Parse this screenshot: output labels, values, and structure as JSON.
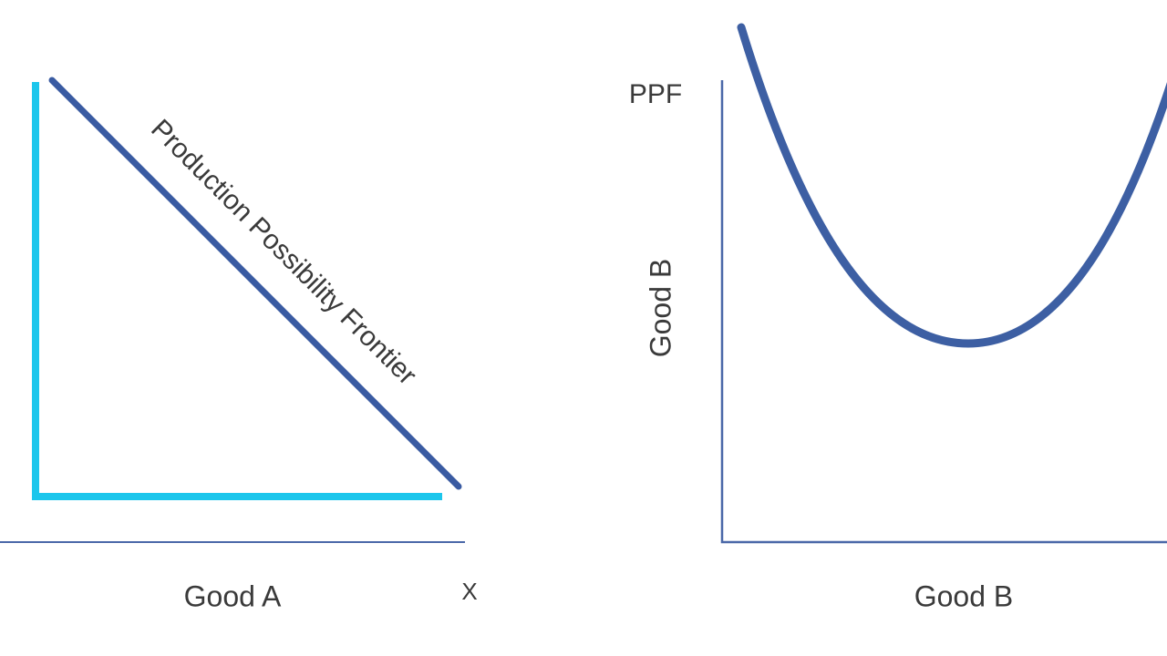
{
  "left_panel": {
    "curve_label": "Production Possibility Frontier",
    "x_axis_label": "Good A",
    "corner_label": "X"
  },
  "right_panel": {
    "title": "PPF",
    "y_axis_label": "Good B",
    "x_axis_label": "Good B"
  }
}
